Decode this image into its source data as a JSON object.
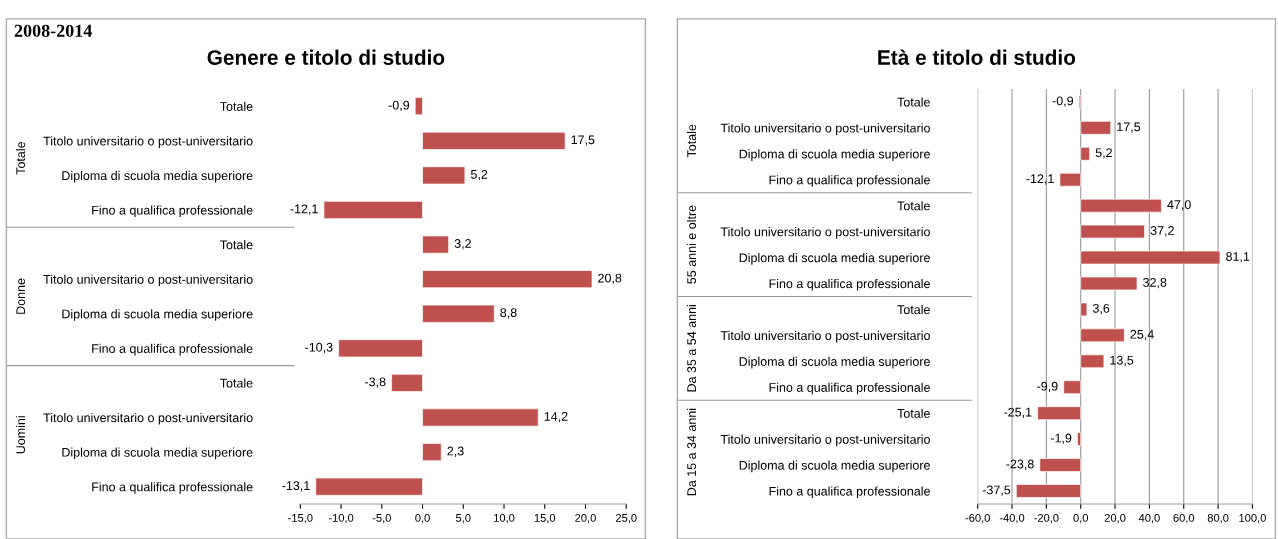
{
  "chart_data": [
    {
      "type": "bar",
      "orientation": "horizontal",
      "title": "Genere e titolo di studio",
      "subtitle": "2008-2014",
      "color": "#c0504d",
      "categories": [
        "Totale",
        "Titolo universitario o post-universitario",
        "Diploma di scuola media superiore",
        "Fino a qualifica professionale",
        "Totale",
        "Titolo universitario o post-universitario",
        "Diploma di scuola media superiore",
        "Fino a qualifica professionale",
        "Totale",
        "Titolo universitario o post-universitario",
        "Diploma di scuola media superiore",
        "Fino a qualifica professionale"
      ],
      "values": [
        -0.9,
        17.5,
        5.2,
        -12.1,
        3.2,
        20.8,
        8.8,
        -10.3,
        -3.8,
        14.2,
        2.3,
        -13.1
      ],
      "value_labels": [
        "-0,9",
        "17,5",
        "5,2",
        "-12,1",
        "3,2",
        "20,8",
        "8,8",
        "-10,3",
        "-3,8",
        "14,2",
        "2,3",
        "-13,1"
      ],
      "annotations": [
        "Totale",
        "Donne",
        "Uomini"
      ],
      "xlim": [
        -15,
        25
      ],
      "xticks": [
        {
          "value": -15,
          "label": "-15,0"
        },
        {
          "value": -10,
          "label": "-10,0"
        },
        {
          "value": -5,
          "label": "-5,0"
        },
        {
          "value": 0,
          "label": "0,0"
        },
        {
          "value": 5,
          "label": "5,0"
        },
        {
          "value": 10,
          "label": "10,0"
        },
        {
          "value": 15,
          "label": "15,0"
        },
        {
          "value": 20,
          "label": "20,0"
        },
        {
          "value": 25,
          "label": "25,0"
        }
      ],
      "grid": false
    },
    {
      "type": "bar",
      "orientation": "horizontal",
      "title": "Età e titolo di studio",
      "color": "#c0504d",
      "categories": [
        "Totale",
        "Titolo universitario o post-universitario",
        "Diploma di scuola media superiore",
        "Fino a qualifica professionale",
        "Totale",
        "Titolo universitario o post-universitario",
        "Diploma di scuola media superiore",
        "Fino a qualifica professionale",
        "Totale",
        "Titolo universitario o post-universitario",
        "Diploma di scuola media superiore",
        "Fino a qualifica professionale",
        "Totale",
        "Titolo universitario o post-universitario",
        "Diploma di scuola media superiore",
        "Fino a qualifica professionale"
      ],
      "values": [
        -0.9,
        17.5,
        5.2,
        -12.1,
        47.0,
        37.2,
        81.1,
        32.8,
        3.6,
        25.4,
        13.5,
        -9.9,
        -25.1,
        -1.9,
        -23.8,
        -37.5
      ],
      "value_labels": [
        "-0,9",
        "17,5",
        "5,2",
        "-12,1",
        "47,0",
        "37,2",
        "81,1",
        "32,8",
        "3,6",
        "25,4",
        "13,5",
        "-9,9",
        "-25,1",
        "-1,9",
        "-23,8",
        "-37,5"
      ],
      "annotations": [
        "Totale",
        "55 anni e oltre",
        "Da 35 a 54 anni",
        "Da 15 a 34 anni"
      ],
      "xlim": [
        -60,
        100
      ],
      "xticks": [
        {
          "value": -60,
          "label": "-60,0"
        },
        {
          "value": -40,
          "label": "-40,0"
        },
        {
          "value": -20,
          "label": "-20,0"
        },
        {
          "value": 0,
          "label": "0,0"
        },
        {
          "value": 20,
          "label": "20,0"
        },
        {
          "value": 40,
          "label": "40,0"
        },
        {
          "value": 60,
          "label": "60,0"
        },
        {
          "value": 80,
          "label": "80,0"
        },
        {
          "value": 100,
          "label": "100,0"
        }
      ],
      "grid": "x"
    }
  ]
}
